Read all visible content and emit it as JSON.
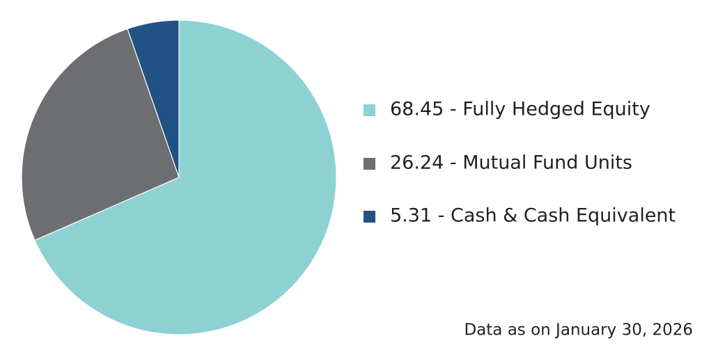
{
  "chart_data": {
    "type": "pie",
    "categories": [
      "68.45 - Fully Hedged Equity",
      "26.24 - Mutual Fund Units",
      "5.31 - Cash & Cash Equivalent"
    ],
    "values": [
      68.45,
      26.24,
      5.31
    ],
    "colors": [
      "#8dd1d3",
      "#6d6e71",
      "#215284"
    ],
    "annotation": "Data as on January 30, 2026",
    "legend": "right"
  }
}
